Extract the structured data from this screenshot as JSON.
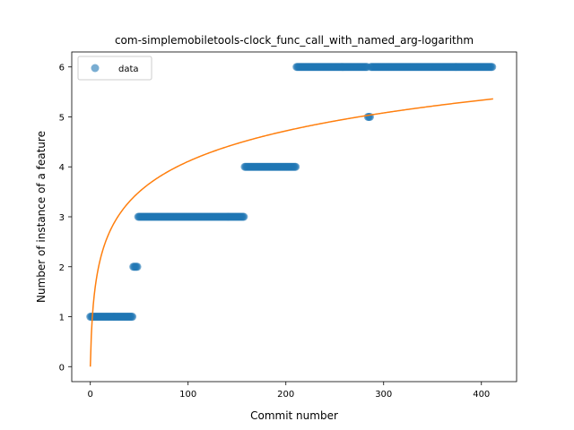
{
  "chart_data": {
    "type": "scatter",
    "title": "com-simplemobiletools-clock_func_call_with_named_arg-logarithm",
    "xlabel": "Commit number",
    "ylabel": "Number of instance of a feature",
    "xlim": [
      -19,
      436
    ],
    "ylim": [
      -0.3,
      6.3
    ],
    "xticks": [
      0,
      100,
      200,
      300,
      400
    ],
    "yticks": [
      0,
      1,
      2,
      3,
      4,
      5,
      6
    ],
    "grid": false,
    "legend": {
      "placement": "top-left",
      "entries": [
        "data"
      ]
    },
    "colors": {
      "data": "#1f77b4",
      "fit": "#ff7f0e"
    },
    "series": [
      {
        "name": "data",
        "kind": "scatter",
        "segments": [
          {
            "x_start": 0,
            "x_end": 44,
            "y": 1
          },
          {
            "x_start": 44,
            "x_end": 49,
            "y": 2
          },
          {
            "x_start": 49,
            "x_end": 158,
            "y": 3
          },
          {
            "x_start": 158,
            "x_end": 211,
            "y": 4
          },
          {
            "x_start": 211,
            "x_end": 284,
            "y": 6
          },
          {
            "x_start": 284,
            "x_end": 287,
            "y": 5
          },
          {
            "x_start": 287,
            "x_end": 412,
            "y": 6
          }
        ]
      },
      {
        "kind": "line",
        "fit": {
          "model": "logarithmic",
          "a": 0.89,
          "x_start": 0,
          "x_end": 412
        }
      }
    ]
  }
}
